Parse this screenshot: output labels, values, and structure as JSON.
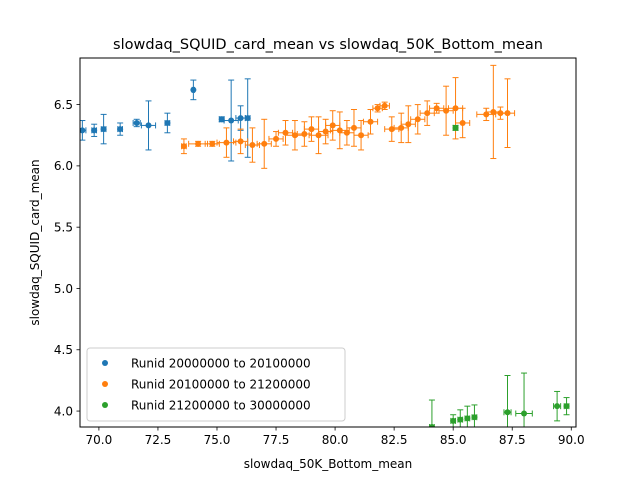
{
  "chart_data": {
    "type": "scatter",
    "title": "slowdaq_SQUID_card_mean vs slowdaq_50K_Bottom_mean",
    "xlabel": "slowdaq_50K_Bottom_mean",
    "ylabel": "slowdaq_SQUID_card_mean",
    "xlim": [
      69.2,
      90.2
    ],
    "ylim": [
      3.87,
      6.88
    ],
    "x_ticks": [
      "70.0",
      "72.5",
      "75.0",
      "77.5",
      "80.0",
      "82.5",
      "85.0",
      "87.5",
      "90.0"
    ],
    "y_ticks": [
      "4.0",
      "4.5",
      "5.0",
      "5.5",
      "6.0",
      "6.5"
    ],
    "grid": false,
    "legend_position": "lower-left",
    "series": [
      {
        "name": "Runid 20000000 to 20100000",
        "color": "#1f77b4",
        "points": [
          {
            "x": 69.3,
            "y": 6.29,
            "xerr": 0.15,
            "yerr": 0.08
          },
          {
            "x": 69.8,
            "y": 6.29,
            "xerr": 0.1,
            "yerr": 0.05
          },
          {
            "x": 70.2,
            "y": 6.3,
            "xerr": 0.1,
            "yerr": 0.12
          },
          {
            "x": 70.9,
            "y": 6.3,
            "xerr": 0.1,
            "yerr": 0.05
          },
          {
            "x": 71.6,
            "y": 6.35,
            "xerr": 0.15,
            "yerr": 0.03
          },
          {
            "x": 72.1,
            "y": 6.33,
            "xerr": 0.3,
            "yerr": 0.2
          },
          {
            "x": 72.9,
            "y": 6.35,
            "xerr": 0.1,
            "yerr": 0.08
          },
          {
            "x": 74.0,
            "y": 6.62,
            "xerr": 0.05,
            "yerr": 0.08
          },
          {
            "x": 75.2,
            "y": 6.38,
            "xerr": 0.1,
            "yerr": 0.02
          },
          {
            "x": 75.6,
            "y": 6.37,
            "xerr": 0.3,
            "yerr": 0.33
          },
          {
            "x": 76.0,
            "y": 6.39,
            "xerr": 0.2,
            "yerr": 0.1
          },
          {
            "x": 76.3,
            "y": 6.39,
            "xerr": 0.1,
            "yerr": 0.32
          }
        ]
      },
      {
        "name": "Runid 20100000 to 21200000",
        "color": "#ff7f0e",
        "points": [
          {
            "x": 73.6,
            "y": 6.16,
            "xerr": 0.1,
            "yerr": 0.06
          },
          {
            "x": 74.2,
            "y": 6.18,
            "xerr": 0.4,
            "yerr": 0.02
          },
          {
            "x": 74.8,
            "y": 6.18,
            "xerr": 0.3,
            "yerr": 0.02
          },
          {
            "x": 75.4,
            "y": 6.19,
            "xerr": 0.4,
            "yerr": 0.12
          },
          {
            "x": 76.0,
            "y": 6.2,
            "xerr": 0.3,
            "yerr": 0.1
          },
          {
            "x": 76.5,
            "y": 6.17,
            "xerr": 0.3,
            "yerr": 0.14
          },
          {
            "x": 77.0,
            "y": 6.18,
            "xerr": 0.3,
            "yerr": 0.2
          },
          {
            "x": 77.5,
            "y": 6.22,
            "xerr": 0.3,
            "yerr": 0.06
          },
          {
            "x": 77.9,
            "y": 6.27,
            "xerr": 0.3,
            "yerr": 0.1
          },
          {
            "x": 78.3,
            "y": 6.25,
            "xerr": 0.4,
            "yerr": 0.12
          },
          {
            "x": 78.7,
            "y": 6.26,
            "xerr": 0.3,
            "yerr": 0.1
          },
          {
            "x": 79.0,
            "y": 6.3,
            "xerr": 0.3,
            "yerr": 0.1
          },
          {
            "x": 79.3,
            "y": 6.25,
            "xerr": 0.4,
            "yerr": 0.15
          },
          {
            "x": 79.6,
            "y": 6.28,
            "xerr": 0.3,
            "yerr": 0.1
          },
          {
            "x": 79.9,
            "y": 6.33,
            "xerr": 0.3,
            "yerr": 0.12
          },
          {
            "x": 80.2,
            "y": 6.29,
            "xerr": 0.4,
            "yerr": 0.15
          },
          {
            "x": 80.5,
            "y": 6.27,
            "xerr": 0.3,
            "yerr": 0.1
          },
          {
            "x": 80.8,
            "y": 6.31,
            "xerr": 0.3,
            "yerr": 0.15
          },
          {
            "x": 81.1,
            "y": 6.25,
            "xerr": 0.3,
            "yerr": 0.12
          },
          {
            "x": 81.5,
            "y": 6.36,
            "xerr": 0.3,
            "yerr": 0.1
          },
          {
            "x": 81.8,
            "y": 6.47,
            "xerr": 0.2,
            "yerr": 0.03
          },
          {
            "x": 82.1,
            "y": 6.49,
            "xerr": 0.2,
            "yerr": 0.03
          },
          {
            "x": 82.4,
            "y": 6.3,
            "xerr": 0.3,
            "yerr": 0.1
          },
          {
            "x": 82.8,
            "y": 6.31,
            "xerr": 0.3,
            "yerr": 0.12
          },
          {
            "x": 83.1,
            "y": 6.34,
            "xerr": 0.3,
            "yerr": 0.15
          },
          {
            "x": 83.5,
            "y": 6.38,
            "xerr": 0.3,
            "yerr": 0.12
          },
          {
            "x": 83.9,
            "y": 6.43,
            "xerr": 0.3,
            "yerr": 0.1
          },
          {
            "x": 84.3,
            "y": 6.47,
            "xerr": 0.3,
            "yerr": 0.04
          },
          {
            "x": 84.7,
            "y": 6.45,
            "xerr": 0.3,
            "yerr": 0.2
          },
          {
            "x": 85.1,
            "y": 6.47,
            "xerr": 0.3,
            "yerr": 0.25
          },
          {
            "x": 85.4,
            "y": 6.35,
            "xerr": 0.3,
            "yerr": 0.12
          },
          {
            "x": 86.4,
            "y": 6.42,
            "xerr": 0.4,
            "yerr": 0.05
          },
          {
            "x": 86.7,
            "y": 6.44,
            "xerr": 0.3,
            "yerr": 0.38
          },
          {
            "x": 87.0,
            "y": 6.43,
            "xerr": 0.3,
            "yerr": 0.05
          },
          {
            "x": 87.3,
            "y": 6.43,
            "xerr": 0.3,
            "yerr": 0.28
          }
        ]
      },
      {
        "name": "Runid 21200000 to 30000000",
        "color": "#2ca02c",
        "points": [
          {
            "x": 84.1,
            "y": 3.87,
            "xerr": 0.1,
            "yerr": 0.22
          },
          {
            "x": 85.0,
            "y": 3.92,
            "xerr": 0.1,
            "yerr": 0.05
          },
          {
            "x": 85.1,
            "y": 6.31,
            "xerr": 0.1,
            "yerr": 0.02
          },
          {
            "x": 85.3,
            "y": 3.93,
            "xerr": 0.1,
            "yerr": 0.08
          },
          {
            "x": 85.6,
            "y": 3.94,
            "xerr": 0.1,
            "yerr": 0.1
          },
          {
            "x": 85.9,
            "y": 3.95,
            "xerr": 0.1,
            "yerr": 0.1
          },
          {
            "x": 87.3,
            "y": 3.99,
            "xerr": 0.15,
            "yerr": 0.3
          },
          {
            "x": 88.0,
            "y": 3.98,
            "xerr": 0.35,
            "yerr": 0.33
          },
          {
            "x": 89.4,
            "y": 4.04,
            "xerr": 0.15,
            "yerr": 0.12
          },
          {
            "x": 89.8,
            "y": 4.04,
            "xerr": 0.1,
            "yerr": 0.07
          }
        ]
      }
    ]
  }
}
